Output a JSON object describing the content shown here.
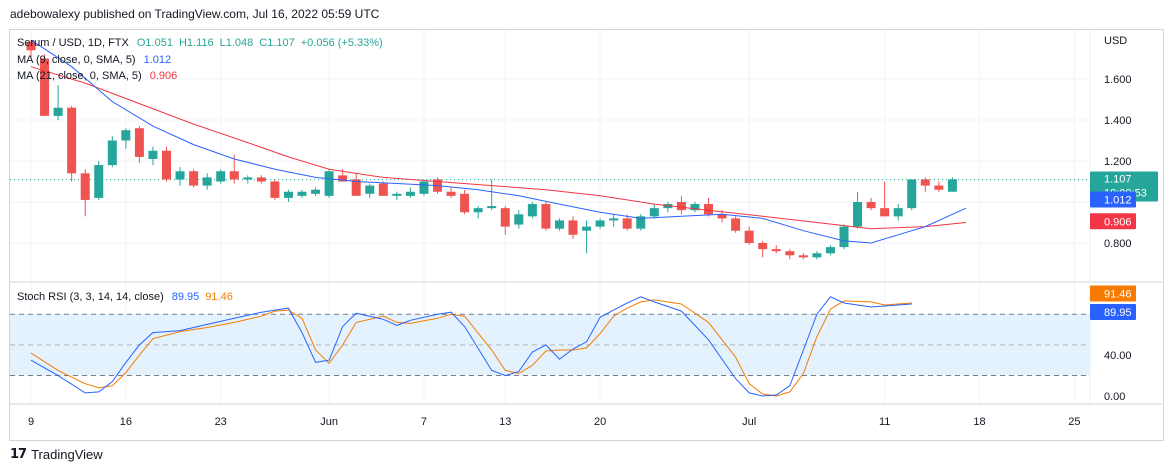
{
  "header": {
    "published": "adebowalexy published on TradingView.com, Jul 16, 2022 05:59 UTC"
  },
  "footer": {
    "brand": "TradingView",
    "logo_icon": "tradingview-logo-icon"
  },
  "colors": {
    "up": "#26a69a",
    "down": "#ef5350",
    "ma9": "#2962ff",
    "ma21": "#f23645",
    "rsi_k": "#2962ff",
    "rsi_d": "#f57c00",
    "band_fill": "#e3f2fd"
  },
  "chart_data": [
    {
      "type": "candlestick",
      "title": "Serum / USD, 1D, FTX",
      "ohlc_label": {
        "o": "O1.051",
        "h": "H1.116",
        "l": "L1.048",
        "c": "C1.107",
        "chg": "+0.056 (+5.33%)"
      },
      "indicators": [
        {
          "name": "MA (9, close, 0, SMA, 5)",
          "value": "1.012",
          "color": "#2962ff"
        },
        {
          "name": "MA (21, close, 0, SMA, 5)",
          "value": "0.906",
          "color": "#f23645"
        }
      ],
      "y_axis": {
        "unit": "USD",
        "ticks": [
          "1.600",
          "1.400",
          "1.200",
          "1.000",
          "0.800"
        ],
        "range": [
          0.67,
          1.8
        ]
      },
      "price_badges": [
        {
          "value": "1.107",
          "sub": "18:00:53",
          "color": "#26a69a"
        },
        {
          "value": "1.012",
          "color": "#2962ff"
        },
        {
          "value": "0.906",
          "color": "#f23645"
        }
      ],
      "x_labels": [
        {
          "label": "9",
          "day": 0
        },
        {
          "label": "16",
          "day": 7
        },
        {
          "label": "23",
          "day": 14
        },
        {
          "label": "Jun",
          "day": 22
        },
        {
          "label": "7",
          "day": 29
        },
        {
          "label": "13",
          "day": 35
        },
        {
          "label": "20",
          "day": 42
        },
        {
          "label": "Jul",
          "day": 53
        },
        {
          "label": "11",
          "day": 63
        },
        {
          "label": "18",
          "day": 70
        },
        {
          "label": "25",
          "day": 77
        }
      ],
      "candles": [
        [
          1.78,
          1.79,
          1.7,
          1.74
        ],
        [
          1.7,
          1.72,
          1.42,
          1.42
        ],
        [
          1.42,
          1.57,
          1.4,
          1.46
        ],
        [
          1.46,
          1.47,
          1.1,
          1.14
        ],
        [
          1.14,
          1.16,
          0.93,
          1.01
        ],
        [
          1.02,
          1.2,
          1.01,
          1.18
        ],
        [
          1.18,
          1.32,
          1.17,
          1.3
        ],
        [
          1.3,
          1.36,
          1.26,
          1.35
        ],
        [
          1.36,
          1.37,
          1.19,
          1.22
        ],
        [
          1.21,
          1.27,
          1.18,
          1.25
        ],
        [
          1.25,
          1.27,
          1.1,
          1.11
        ],
        [
          1.11,
          1.17,
          1.08,
          1.15
        ],
        [
          1.15,
          1.16,
          1.07,
          1.08
        ],
        [
          1.08,
          1.14,
          1.06,
          1.12
        ],
        [
          1.1,
          1.16,
          1.09,
          1.15
        ],
        [
          1.15,
          1.23,
          1.09,
          1.11
        ],
        [
          1.11,
          1.13,
          1.09,
          1.12
        ],
        [
          1.12,
          1.13,
          1.09,
          1.1
        ],
        [
          1.1,
          1.11,
          1.01,
          1.02
        ],
        [
          1.02,
          1.06,
          1.0,
          1.05
        ],
        [
          1.03,
          1.06,
          1.02,
          1.05
        ],
        [
          1.04,
          1.07,
          1.03,
          1.06
        ],
        [
          1.03,
          1.16,
          1.02,
          1.15
        ],
        [
          1.13,
          1.16,
          1.1,
          1.1
        ],
        [
          1.11,
          1.14,
          1.03,
          1.03
        ],
        [
          1.04,
          1.09,
          1.02,
          1.08
        ],
        [
          1.09,
          1.1,
          1.03,
          1.03
        ],
        [
          1.03,
          1.05,
          1.01,
          1.04
        ],
        [
          1.03,
          1.07,
          1.02,
          1.05
        ],
        [
          1.04,
          1.11,
          1.03,
          1.1
        ],
        [
          1.11,
          1.12,
          1.04,
          1.05
        ],
        [
          1.05,
          1.07,
          1.02,
          1.03
        ],
        [
          1.04,
          1.06,
          0.94,
          0.95
        ],
        [
          0.95,
          0.98,
          0.92,
          0.97
        ],
        [
          0.97,
          1.11,
          0.96,
          0.98
        ],
        [
          0.97,
          0.98,
          0.84,
          0.88
        ],
        [
          0.89,
          0.96,
          0.87,
          0.94
        ],
        [
          0.93,
          1.0,
          0.92,
          0.99
        ],
        [
          0.99,
          1.0,
          0.86,
          0.87
        ],
        [
          0.87,
          0.92,
          0.86,
          0.91
        ],
        [
          0.91,
          0.93,
          0.82,
          0.84
        ],
        [
          0.86,
          0.91,
          0.75,
          0.88
        ],
        [
          0.88,
          0.92,
          0.87,
          0.91
        ],
        [
          0.91,
          0.94,
          0.88,
          0.92
        ],
        [
          0.92,
          0.94,
          0.86,
          0.87
        ],
        [
          0.87,
          0.94,
          0.86,
          0.93
        ],
        [
          0.93,
          0.99,
          0.92,
          0.97
        ],
        [
          0.97,
          1.0,
          0.95,
          0.99
        ],
        [
          1.0,
          1.03,
          0.94,
          0.96
        ],
        [
          0.96,
          1.0,
          0.95,
          0.99
        ],
        [
          0.99,
          1.02,
          0.93,
          0.94
        ],
        [
          0.94,
          0.96,
          0.9,
          0.92
        ],
        [
          0.92,
          0.93,
          0.85,
          0.86
        ],
        [
          0.86,
          0.88,
          0.79,
          0.8
        ],
        [
          0.8,
          0.81,
          0.73,
          0.77
        ],
        [
          0.77,
          0.79,
          0.75,
          0.76
        ],
        [
          0.76,
          0.77,
          0.72,
          0.74
        ],
        [
          0.74,
          0.75,
          0.72,
          0.73
        ],
        [
          0.73,
          0.76,
          0.72,
          0.75
        ],
        [
          0.75,
          0.79,
          0.74,
          0.78
        ],
        [
          0.78,
          0.89,
          0.77,
          0.88
        ],
        [
          0.88,
          1.05,
          0.87,
          1.0
        ],
        [
          1.0,
          1.02,
          0.96,
          0.97
        ],
        [
          0.97,
          1.1,
          0.93,
          0.93
        ],
        [
          0.93,
          0.99,
          0.91,
          0.97
        ],
        [
          0.97,
          1.11,
          0.96,
          1.11
        ],
        [
          1.11,
          1.12,
          1.05,
          1.08
        ],
        [
          1.08,
          1.1,
          1.05,
          1.06
        ],
        [
          1.05,
          1.12,
          1.05,
          1.11
        ]
      ],
      "ma9": [
        [
          0,
          1.79
        ],
        [
          3,
          1.66
        ],
        [
          6,
          1.49
        ],
        [
          9,
          1.37
        ],
        [
          12,
          1.28
        ],
        [
          15,
          1.21
        ],
        [
          18,
          1.16
        ],
        [
          21,
          1.12
        ],
        [
          24,
          1.1
        ],
        [
          27,
          1.09
        ],
        [
          30,
          1.08
        ],
        [
          33,
          1.06
        ],
        [
          36,
          1.03
        ],
        [
          39,
          0.99
        ],
        [
          42,
          0.95
        ],
        [
          45,
          0.92
        ],
        [
          48,
          0.93
        ],
        [
          51,
          0.94
        ],
        [
          54,
          0.92
        ],
        [
          57,
          0.86
        ],
        [
          60,
          0.81
        ],
        [
          62,
          0.8
        ],
        [
          64,
          0.84
        ],
        [
          66,
          0.88
        ],
        [
          68,
          0.94
        ],
        [
          69,
          0.97
        ]
      ],
      "ma21": [
        [
          0,
          1.66
        ],
        [
          4,
          1.58
        ],
        [
          8,
          1.48
        ],
        [
          12,
          1.38
        ],
        [
          16,
          1.29
        ],
        [
          19,
          1.22
        ],
        [
          22,
          1.16
        ],
        [
          26,
          1.12
        ],
        [
          30,
          1.1
        ],
        [
          34,
          1.08
        ],
        [
          38,
          1.06
        ],
        [
          42,
          1.03
        ],
        [
          46,
          0.99
        ],
        [
          50,
          0.96
        ],
        [
          54,
          0.93
        ],
        [
          58,
          0.9
        ],
        [
          62,
          0.87
        ],
        [
          66,
          0.88
        ],
        [
          69,
          0.9
        ]
      ]
    },
    {
      "type": "line",
      "title": "Stoch RSI (3, 3, 14, 14, close)",
      "series": [
        {
          "name": "K",
          "value": "89.95",
          "color": "#2962ff",
          "points": [
            [
              0,
              35
            ],
            [
              2,
              20
            ],
            [
              4,
              3
            ],
            [
              5,
              4
            ],
            [
              6,
              14
            ],
            [
              7,
              33
            ],
            [
              8,
              50
            ],
            [
              9,
              62
            ],
            [
              11,
              64
            ],
            [
              13,
              70
            ],
            [
              15,
              76
            ],
            [
              17,
              82
            ],
            [
              18,
              84
            ],
            [
              19,
              86
            ],
            [
              20,
              62
            ],
            [
              21,
              33
            ],
            [
              22,
              35
            ],
            [
              23,
              68
            ],
            [
              24,
              81
            ],
            [
              26,
              75
            ],
            [
              27,
              69
            ],
            [
              28,
              74
            ],
            [
              30,
              80
            ],
            [
              31,
              82
            ],
            [
              32,
              68
            ],
            [
              34,
              25
            ],
            [
              35,
              20
            ],
            [
              36,
              24
            ],
            [
              37,
              43
            ],
            [
              38,
              50
            ],
            [
              39,
              36
            ],
            [
              40,
              46
            ],
            [
              41,
              53
            ],
            [
              42,
              77
            ],
            [
              43,
              84
            ],
            [
              44,
              91
            ],
            [
              45,
              97
            ],
            [
              46,
              92
            ],
            [
              48,
              83
            ],
            [
              50,
              55
            ],
            [
              52,
              17
            ],
            [
              53,
              3
            ],
            [
              54,
              0
            ],
            [
              55,
              1
            ],
            [
              56,
              10
            ],
            [
              57,
              45
            ],
            [
              58,
              80
            ],
            [
              59,
              97
            ],
            [
              60,
              91
            ],
            [
              62,
              87
            ],
            [
              63,
              88
            ],
            [
              65,
              90
            ]
          ]
        },
        {
          "name": "D",
          "value": "91.46",
          "color": "#f57c00",
          "points": [
            [
              0,
              42
            ],
            [
              2,
              25
            ],
            [
              4,
              12
            ],
            [
              5,
              8
            ],
            [
              6,
              10
            ],
            [
              7,
              23
            ],
            [
              8,
              40
            ],
            [
              9,
              56
            ],
            [
              11,
              63
            ],
            [
              13,
              67
            ],
            [
              15,
              72
            ],
            [
              17,
              78
            ],
            [
              18,
              83
            ],
            [
              19,
              84
            ],
            [
              20,
              76
            ],
            [
              21,
              45
            ],
            [
              22,
              32
            ],
            [
              23,
              50
            ],
            [
              24,
              72
            ],
            [
              26,
              78
            ],
            [
              27,
              72
            ],
            [
              28,
              71
            ],
            [
              30,
              76
            ],
            [
              31,
              80
            ],
            [
              32,
              78
            ],
            [
              34,
              45
            ],
            [
              35,
              25
            ],
            [
              36,
              22
            ],
            [
              37,
              30
            ],
            [
              38,
              44
            ],
            [
              39,
              45
            ],
            [
              40,
              45
            ],
            [
              41,
              47
            ],
            [
              42,
              61
            ],
            [
              43,
              78
            ],
            [
              44,
              86
            ],
            [
              45,
              92
            ],
            [
              46,
              94
            ],
            [
              48,
              90
            ],
            [
              50,
              72
            ],
            [
              52,
              38
            ],
            [
              53,
              12
            ],
            [
              54,
              2
            ],
            [
              55,
              0
            ],
            [
              56,
              4
            ],
            [
              57,
              22
            ],
            [
              58,
              58
            ],
            [
              59,
              85
            ],
            [
              60,
              93
            ],
            [
              62,
              92
            ],
            [
              63,
              89
            ],
            [
              65,
              91
            ]
          ]
        }
      ],
      "y_axis": {
        "ticks": [
          "80.00",
          "40.00",
          "0.00"
        ],
        "range": [
          -8,
          114
        ]
      },
      "bands": {
        "upper": 80,
        "lower": 20,
        "middle": 50
      }
    }
  ]
}
